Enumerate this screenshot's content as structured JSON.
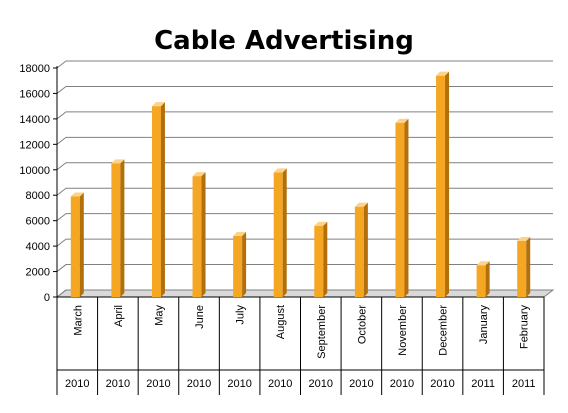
{
  "chart_data": {
    "type": "bar",
    "title": "Cable Advertising",
    "categories": [
      "March",
      "April",
      "May",
      "June",
      "July",
      "August",
      "September",
      "October",
      "November",
      "December",
      "January",
      "February"
    ],
    "years": [
      "2010",
      "2010",
      "2010",
      "2010",
      "2010",
      "2010",
      "2010",
      "2010",
      "2010",
      "2010",
      "2011",
      "2011"
    ],
    "values": [
      7900,
      10500,
      15000,
      9500,
      4800,
      9800,
      5600,
      7100,
      13700,
      17400,
      2500,
      4400
    ],
    "ylim": [
      0,
      18000
    ],
    "yticks": [
      "0",
      "2000",
      "4000",
      "6000",
      "8000",
      "10000",
      "12000",
      "14000",
      "16000",
      "18000"
    ],
    "grid": true,
    "legend": "none",
    "colors": {
      "bar_front": "#f5a623",
      "bar_side": "#b36f0b",
      "bar_top": "#fbd38a",
      "grid": "#808080",
      "wall": "#ffffff"
    }
  }
}
